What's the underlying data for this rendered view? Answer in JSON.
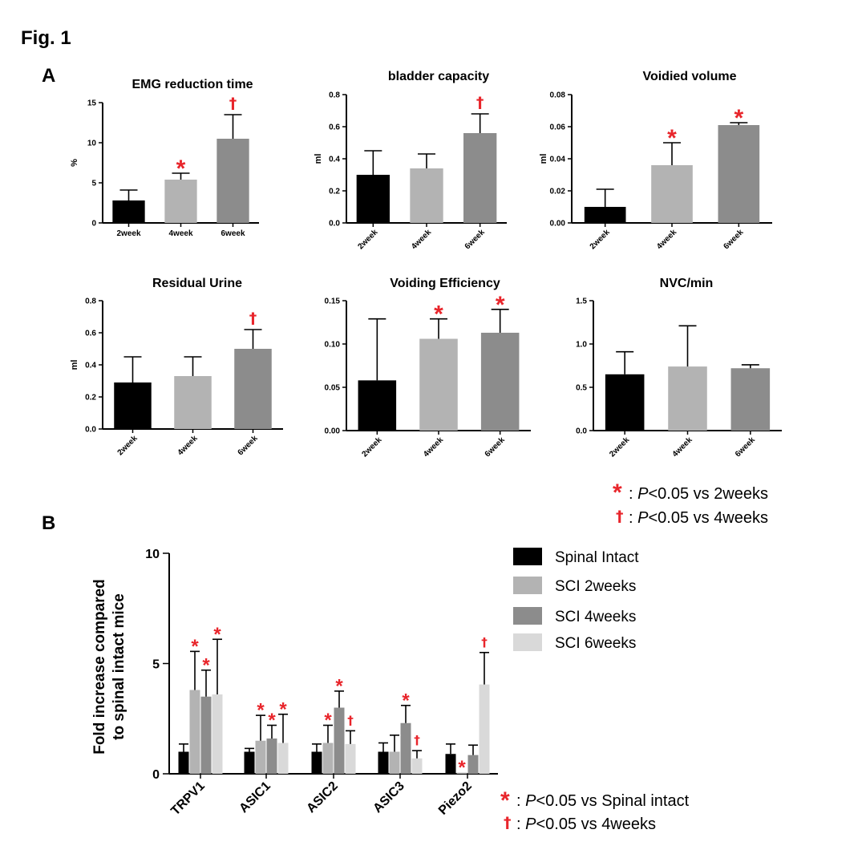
{
  "figure": {
    "title": "Fig. 1",
    "panel_a_label": "A",
    "panel_b_label": "B",
    "colors": {
      "black": "#000000",
      "light_gray": "#b3b3b3",
      "mid_gray": "#8c8c8c",
      "pale_gray": "#d9d9d9",
      "significance_red": "#e8252b"
    }
  },
  "panel_a_notes": {
    "star_symbol": "*",
    "star_text": ": P<0.05 vs 2weeks",
    "dagger_symbol": "†",
    "dagger_text": ": P<0.05 vs 4weeks"
  },
  "panel_b_notes": {
    "star_symbol": "*",
    "star_text": ": P<0.05 vs Spinal intact",
    "dagger_symbol": "†",
    "dagger_text": ": P<0.05 vs 4weeks"
  },
  "legend": {
    "items": [
      {
        "label": "Spinal Intact",
        "color": "#000000"
      },
      {
        "label": "SCI 2weeks",
        "color": "#b3b3b3"
      },
      {
        "label": "SCI 4weeks",
        "color": "#8c8c8c"
      },
      {
        "label": "SCI 6weeks",
        "color": "#d9d9d9"
      }
    ]
  },
  "chart_data": [
    {
      "type": "bar",
      "title": "EMG reduction time",
      "ylabel": "%",
      "categories": [
        "2week",
        "4week",
        "6week"
      ],
      "values": [
        2.8,
        5.4,
        10.5
      ],
      "errors": [
        1.3,
        0.8,
        3.0
      ],
      "colors": [
        "#000000",
        "#b3b3b3",
        "#8c8c8c"
      ],
      "marks": [
        "",
        "*",
        "†"
      ],
      "ylim": [
        0,
        15
      ],
      "yticks": [
        "0",
        "5",
        "10",
        "15"
      ],
      "tick_values": [
        0,
        5,
        10,
        15
      ],
      "rotate_labels": false
    },
    {
      "type": "bar",
      "title": "bladder capacity",
      "ylabel": "ml",
      "categories": [
        "2week",
        "4week",
        "6week"
      ],
      "values": [
        0.3,
        0.34,
        0.56
      ],
      "errors": [
        0.15,
        0.09,
        0.12
      ],
      "colors": [
        "#000000",
        "#b3b3b3",
        "#8c8c8c"
      ],
      "marks": [
        "",
        "",
        "†"
      ],
      "ylim": [
        0,
        0.8
      ],
      "yticks": [
        "0.0",
        "0.2",
        "0.4",
        "0.6",
        "0.8"
      ],
      "tick_values": [
        0,
        0.2,
        0.4,
        0.6,
        0.8
      ],
      "rotate_labels": true
    },
    {
      "type": "bar",
      "title": "Voidied volume",
      "ylabel": "ml",
      "categories": [
        "2week",
        "4week",
        "6week"
      ],
      "values": [
        0.01,
        0.036,
        0.061
      ],
      "errors": [
        0.011,
        0.014,
        0.0015
      ],
      "colors": [
        "#000000",
        "#b3b3b3",
        "#8c8c8c"
      ],
      "marks": [
        "",
        "*",
        "*"
      ],
      "ylim": [
        0,
        0.08
      ],
      "yticks": [
        "0.00",
        "0.02",
        "0.04",
        "0.06",
        "0.08"
      ],
      "tick_values": [
        0,
        0.02,
        0.04,
        0.06,
        0.08
      ],
      "rotate_labels": true
    },
    {
      "type": "bar",
      "title": "Residual Urine",
      "ylabel": "ml",
      "categories": [
        "2week",
        "4week",
        "6week"
      ],
      "values": [
        0.29,
        0.33,
        0.5
      ],
      "errors": [
        0.16,
        0.12,
        0.12
      ],
      "colors": [
        "#000000",
        "#b3b3b3",
        "#8c8c8c"
      ],
      "marks": [
        "",
        "",
        "†"
      ],
      "ylim": [
        0,
        0.8
      ],
      "yticks": [
        "0.0",
        "0.2",
        "0.4",
        "0.6",
        "0.8"
      ],
      "tick_values": [
        0,
        0.2,
        0.4,
        0.6,
        0.8
      ],
      "rotate_labels": true
    },
    {
      "type": "bar",
      "title": "Voiding Efficiency",
      "ylabel": "",
      "categories": [
        "2week",
        "4week",
        "6week"
      ],
      "values": [
        0.058,
        0.106,
        0.113
      ],
      "errors": [
        0.071,
        0.023,
        0.027
      ],
      "colors": [
        "#000000",
        "#b3b3b3",
        "#8c8c8c"
      ],
      "marks": [
        "",
        "*",
        "*"
      ],
      "ylim": [
        0,
        0.15
      ],
      "yticks": [
        "0.00",
        "0.05",
        "0.10",
        "0.15"
      ],
      "tick_values": [
        0,
        0.05,
        0.1,
        0.15
      ],
      "rotate_labels": true
    },
    {
      "type": "bar",
      "title": "NVC/min",
      "ylabel": "",
      "categories": [
        "2week",
        "4week",
        "6week"
      ],
      "values": [
        0.65,
        0.74,
        0.72
      ],
      "errors": [
        0.26,
        0.47,
        0.04
      ],
      "colors": [
        "#000000",
        "#b3b3b3",
        "#8c8c8c"
      ],
      "marks": [
        "",
        "",
        ""
      ],
      "ylim": [
        0,
        1.5
      ],
      "yticks": [
        "0.0",
        "0.5",
        "1.0",
        "1.5"
      ],
      "tick_values": [
        0,
        0.5,
        1.0,
        1.5
      ],
      "rotate_labels": true
    },
    {
      "type": "bar",
      "title": "",
      "ylabel": "Fold increase compared to spinal intact mice",
      "ylabel_lines": [
        "Fold increase compared",
        "to spinal intact mice"
      ],
      "categories": [
        "TRPV1",
        "ASIC1",
        "ASIC2",
        "ASIC3",
        "Piezo2"
      ],
      "ylim": [
        0,
        10
      ],
      "yticks": [
        "0",
        "5",
        "10"
      ],
      "tick_values": [
        0,
        5,
        10
      ],
      "series": [
        {
          "name": "Spinal Intact",
          "color": "#000000",
          "values": [
            1.0,
            1.0,
            1.0,
            1.0,
            0.9
          ],
          "errors": [
            0.35,
            0.15,
            0.35,
            0.4,
            0.45
          ],
          "marks": [
            "",
            "",
            "",
            "",
            ""
          ]
        },
        {
          "name": "SCI 2weeks",
          "color": "#b3b3b3",
          "values": [
            3.8,
            1.5,
            1.4,
            1.0,
            0.05
          ],
          "errors": [
            1.75,
            1.15,
            0.8,
            0.75,
            0.0
          ],
          "marks": [
            "*",
            "*",
            "*",
            "",
            "*"
          ]
        },
        {
          "name": "SCI 4weeks",
          "color": "#8c8c8c",
          "values": [
            3.5,
            1.6,
            3.0,
            2.3,
            0.85
          ],
          "errors": [
            1.2,
            0.6,
            0.75,
            0.8,
            0.45
          ],
          "marks": [
            "*",
            "*",
            "*",
            "*",
            ""
          ]
        },
        {
          "name": "SCI 6weeks",
          "color": "#d9d9d9",
          "values": [
            3.6,
            1.4,
            1.35,
            0.7,
            4.05
          ],
          "errors": [
            2.5,
            1.3,
            0.6,
            0.35,
            1.45
          ],
          "marks": [
            "*",
            "*",
            "†",
            "†",
            "†"
          ]
        }
      ]
    }
  ]
}
